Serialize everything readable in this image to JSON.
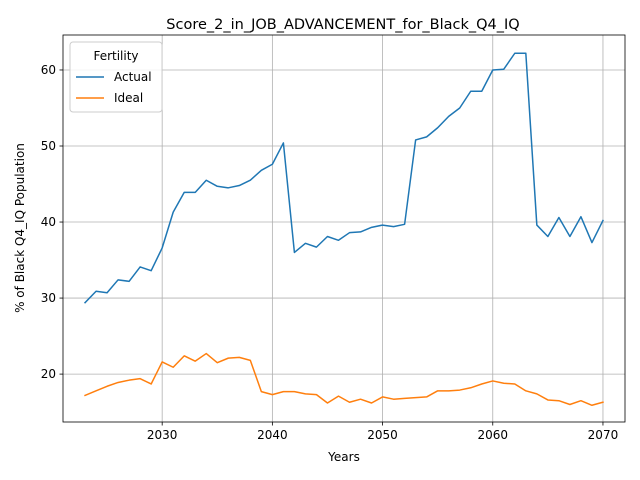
{
  "chart_data": {
    "type": "line",
    "title": "Score_2_in_JOB_ADVANCEMENT_for_Black_Q4_IQ",
    "xlabel": "Years",
    "ylabel": "% of Black Q4_IQ Population",
    "xlim": [
      2021,
      2072
    ],
    "ylim": [
      13.7,
      64.6
    ],
    "xticks": [
      2030,
      2040,
      2050,
      2060,
      2070
    ],
    "yticks": [
      20,
      30,
      40,
      50,
      60
    ],
    "grid": true,
    "legend": {
      "title": "Fertility",
      "placement": "top-left"
    },
    "x": [
      2023,
      2024,
      2025,
      2026,
      2027,
      2028,
      2029,
      2030,
      2031,
      2032,
      2033,
      2034,
      2035,
      2036,
      2037,
      2038,
      2039,
      2040,
      2041,
      2042,
      2043,
      2044,
      2045,
      2046,
      2047,
      2048,
      2049,
      2050,
      2051,
      2052,
      2053,
      2054,
      2055,
      2056,
      2057,
      2058,
      2059,
      2060,
      2061,
      2062,
      2063,
      2064,
      2065,
      2066,
      2067,
      2068,
      2069,
      2070
    ],
    "series": [
      {
        "name": "Actual",
        "color": "#1f77b4",
        "values": [
          29.4,
          30.9,
          30.7,
          32.4,
          32.2,
          34.1,
          33.6,
          36.6,
          41.3,
          43.9,
          43.9,
          45.5,
          44.7,
          44.5,
          44.8,
          45.5,
          46.8,
          47.6,
          50.4,
          36.0,
          37.2,
          36.7,
          38.1,
          37.6,
          38.6,
          38.7,
          39.3,
          39.6,
          39.4,
          39.7,
          50.8,
          51.2,
          52.4,
          53.9,
          55.0,
          57.2,
          57.2,
          60.0,
          60.1,
          62.2,
          62.2,
          39.6,
          38.1,
          40.6,
          38.1,
          40.7,
          37.3,
          40.2
        ]
      },
      {
        "name": "Ideal",
        "color": "#ff7f0e",
        "values": [
          17.2,
          17.8,
          18.4,
          18.9,
          19.2,
          19.4,
          18.7,
          21.6,
          20.9,
          22.4,
          21.7,
          22.7,
          21.5,
          22.1,
          22.2,
          21.8,
          17.7,
          17.3,
          17.7,
          17.7,
          17.4,
          17.3,
          16.2,
          17.1,
          16.3,
          16.7,
          16.2,
          17.0,
          16.7,
          16.8,
          16.9,
          17.0,
          17.8,
          17.8,
          17.9,
          18.2,
          18.7,
          19.1,
          18.8,
          18.7,
          17.8,
          17.4,
          16.6,
          16.5,
          16.0,
          16.5,
          15.9,
          16.3
        ]
      }
    ]
  }
}
